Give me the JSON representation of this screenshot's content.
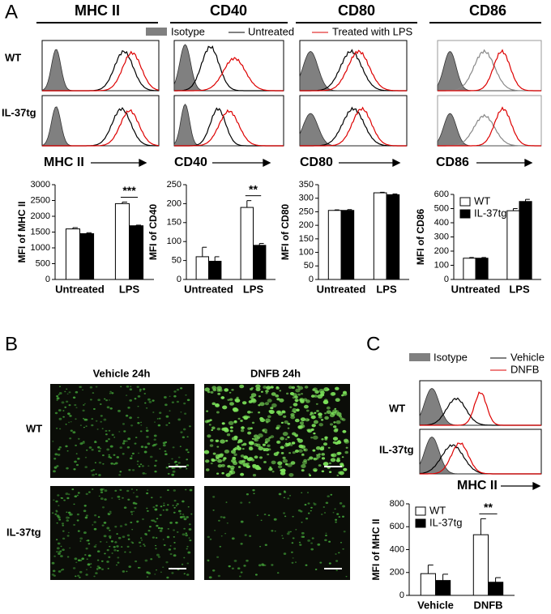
{
  "panel_a": {
    "label": "A",
    "columns": [
      "MHC II",
      "CD40",
      "CD80",
      "CD86"
    ],
    "legend": [
      "Isotype",
      "Untreated",
      "Treated with LPS"
    ],
    "rows": [
      "WT",
      "IL-37tg"
    ],
    "axis_labels": [
      "MHC II",
      "CD40",
      "CD80",
      "CD86"
    ]
  },
  "panel_b": {
    "label": "B",
    "columns": [
      "Vehicle 24h",
      "DNFB  24h"
    ],
    "rows": [
      "WT",
      "IL-37tg"
    ]
  },
  "panel_c": {
    "label": "C",
    "legend": [
      "Isotype",
      "Vehicle",
      "DNFB"
    ],
    "rows": [
      "WT",
      "IL-37tg"
    ],
    "axis_label": "MHC II"
  },
  "chart_data": [
    {
      "type": "bar",
      "ylabel": "MFI of MHC II",
      "categories": [
        "Untreated",
        "LPS"
      ],
      "series": [
        {
          "color": "#ffffff",
          "values": [
            1600,
            2400
          ],
          "errors": [
            40,
            50
          ]
        },
        {
          "color": "#000000",
          "values": [
            1450,
            1700
          ],
          "errors": [
            30,
            20
          ]
        }
      ],
      "ylim": [
        0,
        3000
      ],
      "yticks": [
        0,
        500,
        1000,
        1500,
        2000,
        2500,
        3000
      ],
      "annotation": "***"
    },
    {
      "type": "bar",
      "ylabel": "MFI of CD40",
      "categories": [
        "Untreated",
        "LPS"
      ],
      "series": [
        {
          "color": "#ffffff",
          "values": [
            60,
            190
          ],
          "errors": [
            25,
            18
          ]
        },
        {
          "color": "#000000",
          "values": [
            48,
            90
          ],
          "errors": [
            12,
            5
          ]
        }
      ],
      "ylim": [
        0,
        250
      ],
      "yticks": [
        0,
        50,
        100,
        150,
        200,
        250
      ],
      "annotation": "**"
    },
    {
      "type": "bar",
      "ylabel": "MFI of CD80",
      "categories": [
        "Untreated",
        "LPS"
      ],
      "series": [
        {
          "color": "#ffffff",
          "values": [
            255,
            320
          ],
          "errors": [
            2,
            2
          ]
        },
        {
          "color": "#000000",
          "values": [
            255,
            313
          ],
          "errors": [
            3,
            3
          ]
        }
      ],
      "ylim": [
        0,
        350
      ],
      "yticks": [
        0,
        50,
        100,
        150,
        200,
        250,
        300,
        350
      ]
    },
    {
      "type": "bar",
      "ylabel": "MFI of CD86",
      "categories": [
        "Untreated",
        "LPS"
      ],
      "series": [
        {
          "name": "WT",
          "color": "#ffffff",
          "values": [
            150,
            485
          ],
          "errors": [
            5,
            15
          ]
        },
        {
          "name": "IL-37tg",
          "color": "#000000",
          "values": [
            150,
            550
          ],
          "errors": [
            5,
            15
          ]
        }
      ],
      "ylim": [
        0,
        600
      ],
      "yticks": [
        0,
        100,
        200,
        300,
        400,
        500,
        600
      ],
      "legend": "upper left"
    },
    {
      "type": "bar",
      "ylabel": "MFI of MHC II",
      "categories": [
        "Vehicle",
        "DNFB"
      ],
      "series": [
        {
          "name": "WT",
          "color": "#ffffff",
          "values": [
            190,
            530
          ],
          "errors": [
            75,
            140
          ]
        },
        {
          "name": "IL-37tg",
          "color": "#000000",
          "values": [
            130,
            115
          ],
          "errors": [
            55,
            40
          ]
        }
      ],
      "ylim": [
        0,
        800
      ],
      "yticks": [
        0,
        200,
        400,
        600,
        800
      ],
      "annotation": "**",
      "legend": "upper left"
    }
  ]
}
